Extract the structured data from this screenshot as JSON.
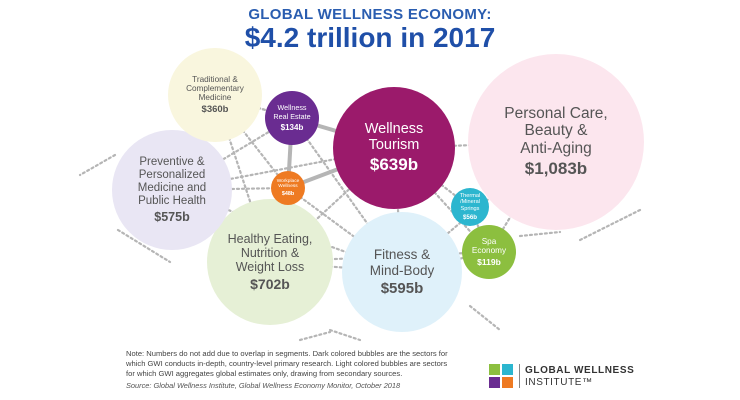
{
  "title": {
    "line1": "GLOBAL WELLNESS ECONOMY:",
    "line2": "$4.2 trillion in 2017"
  },
  "sectors": [
    {
      "id": "personal-care",
      "name": "Personal Care,\nBeauty &\nAnti-Aging",
      "value": "$1,083b",
      "value_billions": 1083,
      "color": "#fce6ee",
      "text_color": "#555555",
      "shade": "light"
    },
    {
      "id": "healthy-eating",
      "name": "Healthy Eating,\nNutrition &\nWeight Loss",
      "value": "$702b",
      "value_billions": 702,
      "color": "#e6f0d6",
      "text_color": "#555555",
      "shade": "light"
    },
    {
      "id": "wellness-tourism",
      "name": "Wellness\nTourism",
      "value": "$639b",
      "value_billions": 639,
      "color": "#9b1a6b",
      "text_color": "#ffffff",
      "shade": "dark"
    },
    {
      "id": "fitness",
      "name": "Fitness &\nMind-Body",
      "value": "$595b",
      "value_billions": 595,
      "color": "#dff1fa",
      "text_color": "#555555",
      "shade": "light"
    },
    {
      "id": "preventive",
      "name": "Preventive &\nPersonalized\nMedicine and\nPublic Health",
      "value": "$575b",
      "value_billions": 575,
      "color": "#e9e6f4",
      "text_color": "#555555",
      "shade": "light"
    },
    {
      "id": "traditional",
      "name": "Traditional &\nComplementary\nMedicine",
      "value": "$360b",
      "value_billions": 360,
      "color": "#f9f6de",
      "text_color": "#555555",
      "shade": "light"
    },
    {
      "id": "real-estate",
      "name": "Wellness\nReal Estate",
      "value": "$134b",
      "value_billions": 134,
      "color": "#6a2c91",
      "text_color": "#ffffff",
      "shade": "dark"
    },
    {
      "id": "spa-economy",
      "name": "Spa\nEconomy",
      "value": "$119b",
      "value_billions": 119,
      "color": "#8cbf3f",
      "text_color": "#ffffff",
      "shade": "dark"
    },
    {
      "id": "thermal",
      "name": "Thermal\n/Mineral\nSprings",
      "value": "$56b",
      "value_billions": 56,
      "color": "#2cb6cf",
      "text_color": "#ffffff",
      "shade": "dark"
    },
    {
      "id": "workplace",
      "name": "Workplace\nWellness",
      "value": "$48b",
      "value_billions": 48,
      "color": "#ee7a22",
      "text_color": "#ffffff",
      "shade": "dark"
    }
  ],
  "note": "Note: Numbers do not add due to overlap in segments. Dark colored bubbles are the sectors for which GWI conducts in-depth, country-level primary research. Light colored bubbles are sectors for which GWI aggregates global estimates only, drawing from secondary sources.",
  "source": "Source: Global Wellness Institute, Global Wellness Economy Monitor, October 2018",
  "logo": {
    "line1": "GLOBAL WELLNESS",
    "line2": "INSTITUTE™",
    "colors": [
      "#8cbf3f",
      "#2cb6cf",
      "#6a2c91",
      "#ee7a22"
    ]
  }
}
